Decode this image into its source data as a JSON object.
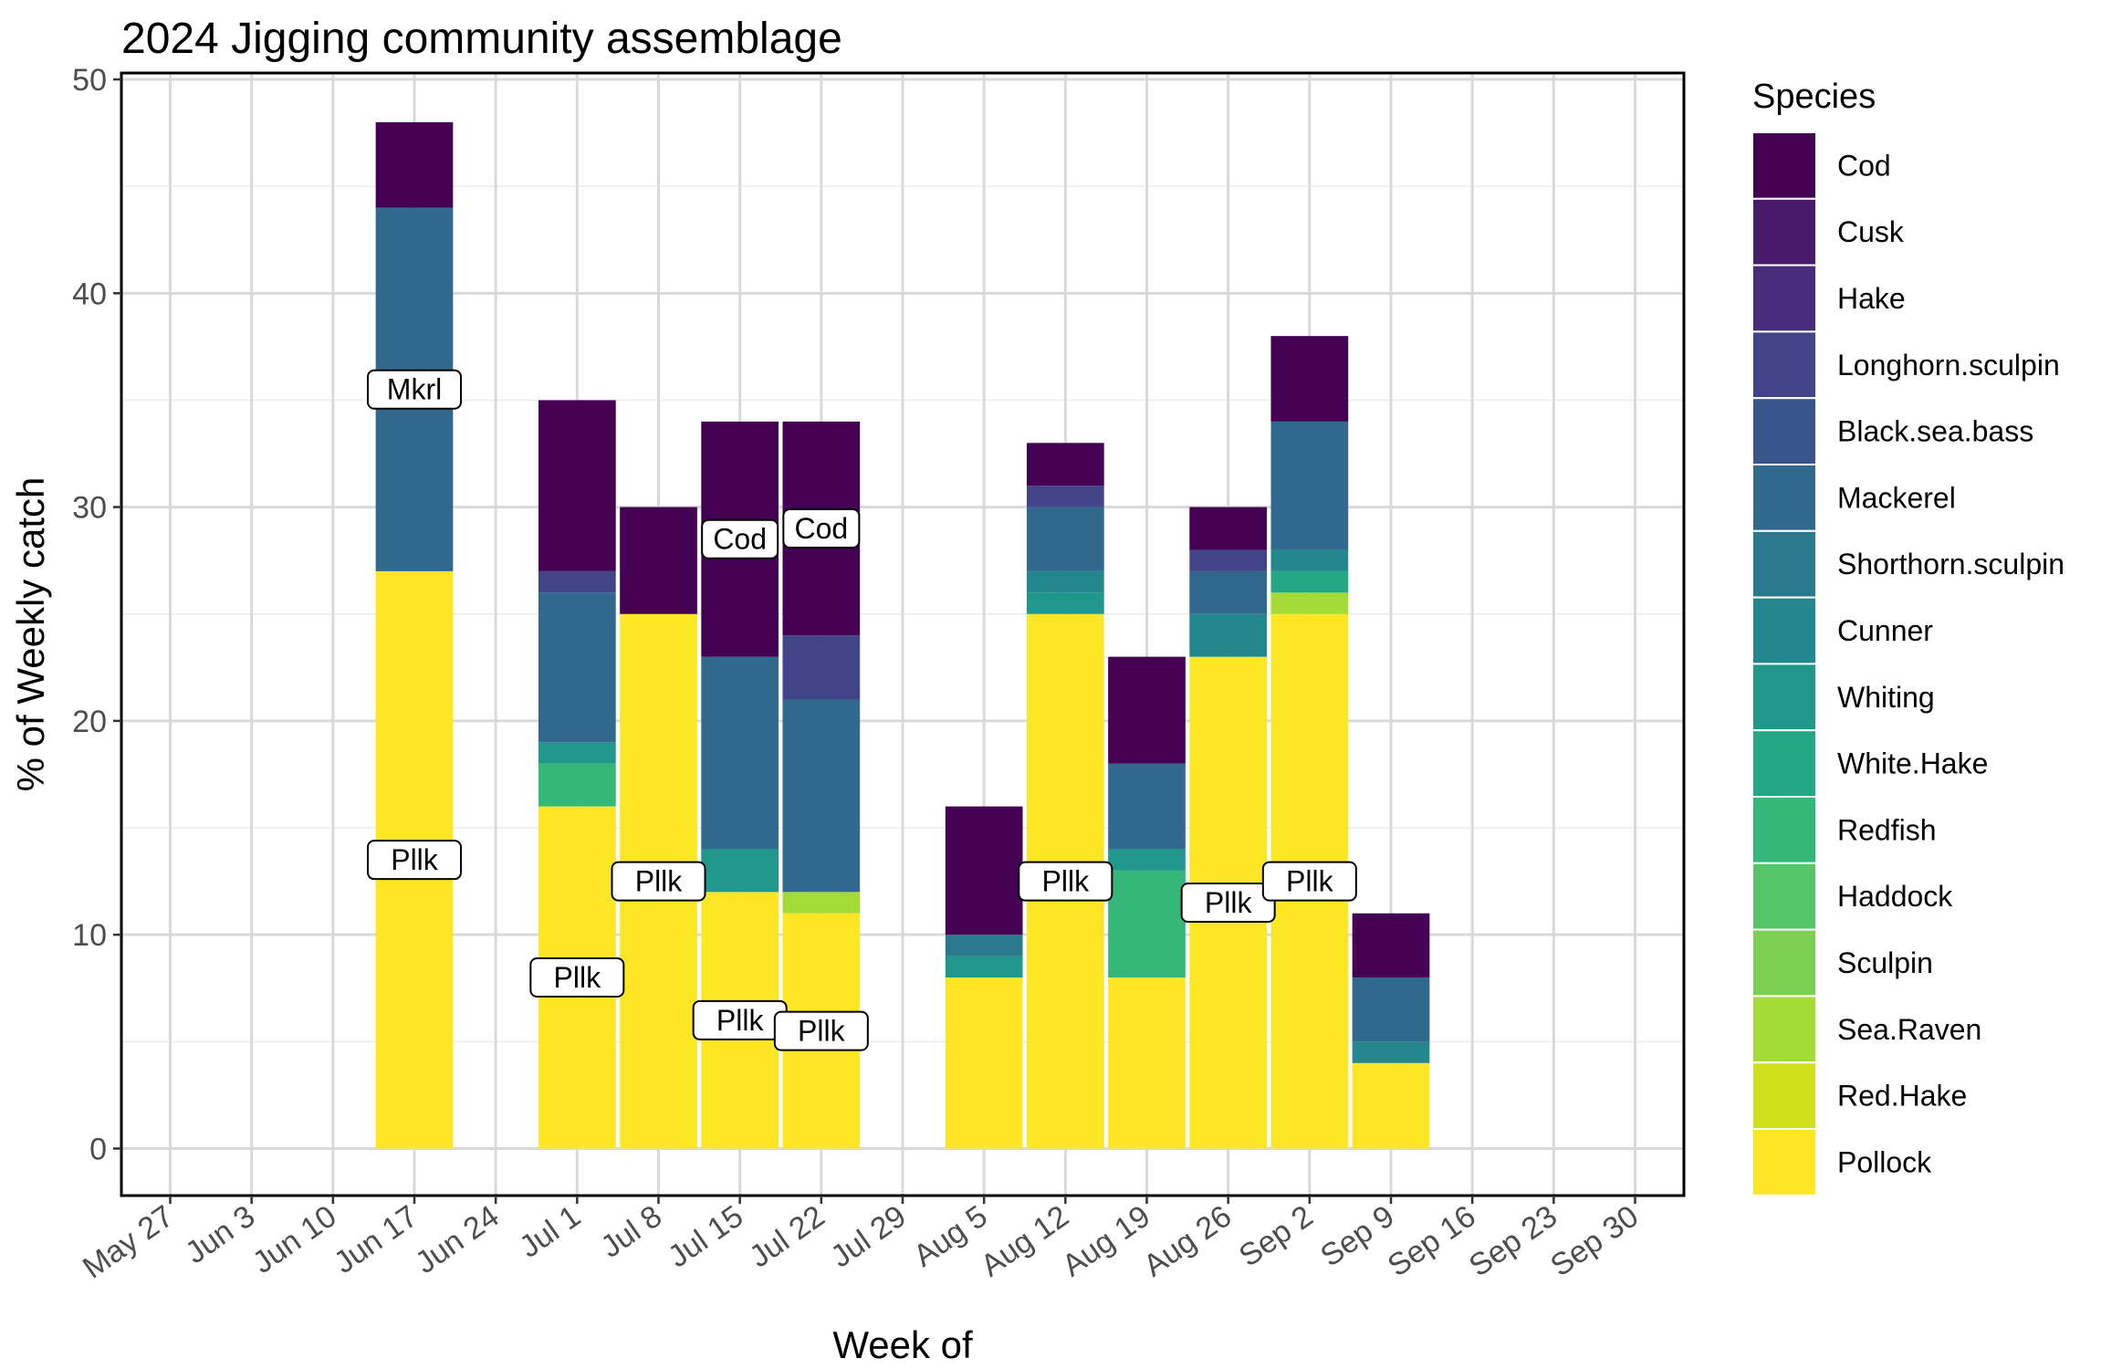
{
  "chart_data": {
    "type": "bar",
    "stacked": true,
    "title": "2024 Jigging community assemblage",
    "xlabel": "Week of",
    "ylabel": "% of Weekly catch",
    "ylim": [
      -2.2,
      50.3
    ],
    "yticks": [
      0,
      10,
      20,
      30,
      40,
      50
    ],
    "grid": true,
    "categories": [
      "May 27",
      "Jun 3",
      "Jun 10",
      "Jun 17",
      "Jun 24",
      "Jul 1",
      "Jul 8",
      "Jul 15",
      "Jul 22",
      "Jul 29",
      "Aug 5",
      "Aug 12",
      "Aug 19",
      "Aug 26",
      "Sep 2",
      "Sep 9",
      "Sep 16",
      "Sep 23",
      "Sep 30"
    ],
    "legend": {
      "title": "Species",
      "position": "right"
    },
    "series": [
      {
        "name": "Pollock",
        "color": "#FDE725",
        "values": [
          0,
          0,
          0,
          27,
          0,
          16,
          25,
          12,
          11,
          0,
          8,
          25,
          8,
          23,
          25,
          4,
          0,
          0,
          0
        ]
      },
      {
        "name": "Red.Hake",
        "color": "#D0E11C",
        "values": [
          0,
          0,
          0,
          0,
          0,
          0,
          0,
          0,
          0,
          0,
          0,
          0,
          0,
          0,
          0,
          0,
          0,
          0,
          0
        ]
      },
      {
        "name": "Sea.Raven",
        "color": "#A5DB36",
        "values": [
          0,
          0,
          0,
          0,
          0,
          0,
          0,
          0,
          1,
          0,
          0,
          0,
          0,
          0,
          1,
          0,
          0,
          0,
          0
        ]
      },
      {
        "name": "Sculpin",
        "color": "#7AD151",
        "values": [
          0,
          0,
          0,
          0,
          0,
          0,
          0,
          0,
          0,
          0,
          0,
          0,
          0,
          0,
          0,
          0,
          0,
          0,
          0
        ]
      },
      {
        "name": "Haddock",
        "color": "#54C568",
        "values": [
          0,
          0,
          0,
          0,
          0,
          0,
          0,
          0,
          0,
          0,
          0,
          0,
          0,
          0,
          0,
          0,
          0,
          0,
          0
        ]
      },
      {
        "name": "Redfish",
        "color": "#35B779",
        "values": [
          0,
          0,
          0,
          0,
          0,
          2,
          0,
          0,
          0,
          0,
          0,
          0,
          5,
          0,
          0,
          0,
          0,
          0,
          0
        ]
      },
      {
        "name": "White.Hake",
        "color": "#22A884",
        "values": [
          0,
          0,
          0,
          0,
          0,
          0,
          0,
          0,
          0,
          0,
          0,
          0,
          0,
          0,
          1,
          0,
          0,
          0,
          0
        ]
      },
      {
        "name": "Whiting",
        "color": "#1F988B",
        "values": [
          0,
          0,
          0,
          0,
          0,
          1,
          0,
          2,
          0,
          0,
          1,
          1,
          1,
          0,
          0,
          0,
          0,
          0,
          0
        ]
      },
      {
        "name": "Cunner",
        "color": "#23888E",
        "values": [
          0,
          0,
          0,
          0,
          0,
          0,
          0,
          0,
          0,
          0,
          0,
          1,
          0,
          2,
          1,
          1,
          0,
          0,
          0
        ]
      },
      {
        "name": "Shorthorn.sculpin",
        "color": "#2A788E",
        "values": [
          0,
          0,
          0,
          0,
          0,
          0,
          0,
          0,
          0,
          0,
          1,
          0,
          0,
          0,
          0,
          0,
          0,
          0,
          0
        ]
      },
      {
        "name": "Mackerel",
        "color": "#31688E",
        "values": [
          0,
          0,
          0,
          17,
          0,
          7,
          0,
          9,
          9,
          0,
          0,
          3,
          4,
          2,
          6,
          3,
          0,
          0,
          0
        ]
      },
      {
        "name": "Black.sea.bass",
        "color": "#39568C",
        "values": [
          0,
          0,
          0,
          0,
          0,
          0,
          0,
          0,
          0,
          0,
          0,
          0,
          0,
          0,
          0,
          0,
          0,
          0,
          0
        ]
      },
      {
        "name": "Longhorn.sculpin",
        "color": "#414487",
        "values": [
          0,
          0,
          0,
          0,
          0,
          1,
          0,
          0,
          3,
          0,
          0,
          1,
          0,
          1,
          0,
          0,
          0,
          0,
          0
        ]
      },
      {
        "name": "Hake",
        "color": "#472D7B",
        "values": [
          0,
          0,
          0,
          0,
          0,
          0,
          0,
          0,
          0,
          0,
          0,
          0,
          0,
          0,
          0,
          0,
          0,
          0,
          0
        ]
      },
      {
        "name": "Cusk",
        "color": "#481A6C",
        "values": [
          0,
          0,
          0,
          0,
          0,
          0,
          0,
          0,
          0,
          0,
          0,
          0,
          0,
          0,
          0,
          0,
          0,
          0,
          0
        ]
      },
      {
        "name": "Cod",
        "color": "#440154",
        "values": [
          0,
          0,
          0,
          4,
          0,
          8,
          5,
          11,
          10,
          0,
          6,
          2,
          5,
          2,
          4,
          3,
          0,
          0,
          0
        ]
      }
    ],
    "annotations": [
      {
        "category": "Jun 17",
        "y": 35.5,
        "text": "Mkrl"
      },
      {
        "category": "Jun 17",
        "y": 13.5,
        "text": "Pllk"
      },
      {
        "category": "Jul 1",
        "y": 8,
        "text": "Pllk"
      },
      {
        "category": "Jul 8",
        "y": 12.5,
        "text": "Pllk"
      },
      {
        "category": "Jul 15",
        "y": 28.5,
        "text": "Cod"
      },
      {
        "category": "Jul 15",
        "y": 6,
        "text": "Pllk"
      },
      {
        "category": "Jul 22",
        "y": 29,
        "text": "Cod"
      },
      {
        "category": "Jul 22",
        "y": 5.5,
        "text": "Pllk"
      },
      {
        "category": "Aug 12",
        "y": 12.5,
        "text": "Pllk"
      },
      {
        "category": "Aug 26",
        "y": 11.5,
        "text": "Pllk"
      },
      {
        "category": "Sep 2",
        "y": 12.5,
        "text": "Pllk"
      }
    ]
  }
}
